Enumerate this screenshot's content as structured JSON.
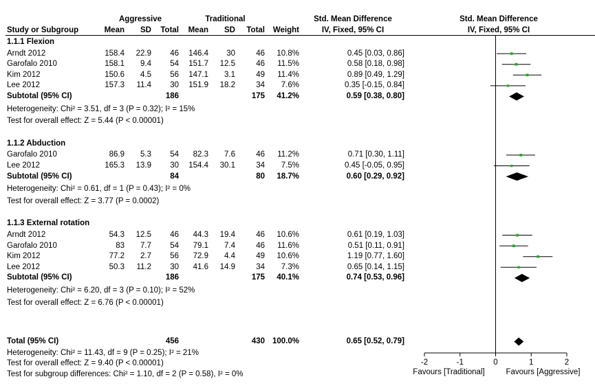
{
  "headers": {
    "aggressive": "Aggressive",
    "traditional": "Traditional",
    "smd_col": "Std. Mean Difference",
    "smd_method": "IV, Fixed, 95% CI",
    "smd_plot": "Std. Mean Difference",
    "smd_plot_method": "IV, Fixed, 95% CI",
    "study": "Study or Subgroup",
    "mean": "Mean",
    "sd": "SD",
    "total": "Total",
    "weight": "Weight"
  },
  "groups": [
    {
      "title": "1.1.1 Flexion",
      "studies": [
        {
          "name": "Arndt 2012",
          "m1": "158.4",
          "sd1": "22.9",
          "n1": "46",
          "m2": "146.4",
          "sd2": "30",
          "n2": "46",
          "weight": "10.8%",
          "ci": "0.45 [0.03, 0.86]"
        },
        {
          "name": "Garofalo 2010",
          "m1": "158.1",
          "sd1": "9.4",
          "n1": "54",
          "m2": "151.7",
          "sd2": "12.5",
          "n2": "46",
          "weight": "11.5%",
          "ci": "0.58 [0.18, 0.98]"
        },
        {
          "name": "Kim 2012",
          "m1": "150.6",
          "sd1": "4.5",
          "n1": "56",
          "m2": "147.1",
          "sd2": "3.1",
          "n2": "49",
          "weight": "11.4%",
          "ci": "0.89 [0.49, 1.29]"
        },
        {
          "name": "Lee 2012",
          "m1": "157.3",
          "sd1": "11.4",
          "n1": "30",
          "m2": "151.9",
          "sd2": "18.2",
          "n2": "34",
          "weight": "7.6%",
          "ci": "0.35 [-0.15, 0.84]"
        }
      ],
      "subtotal": {
        "label": "Subtotal (95% CI)",
        "n1": "186",
        "n2": "175",
        "weight": "41.2%",
        "ci": "0.59 [0.38, 0.80]"
      },
      "heterogeneity": "Heterogeneity: Chi² = 3.51, df = 3 (P = 0.32); I² = 15%",
      "overall": "Test for overall effect: Z = 5.44 (P < 0.00001)"
    },
    {
      "title": "1.1.2 Abduction",
      "studies": [
        {
          "name": "Garofalo 2010",
          "m1": "86.9",
          "sd1": "5.3",
          "n1": "54",
          "m2": "82.3",
          "sd2": "7.6",
          "n2": "46",
          "weight": "11.2%",
          "ci": "0.71 [0.30, 1.11]"
        },
        {
          "name": "Lee 2012",
          "m1": "165.3",
          "sd1": "13.9",
          "n1": "30",
          "m2": "154.4",
          "sd2": "30.1",
          "n2": "34",
          "weight": "7.5%",
          "ci": "0.45 [-0.05, 0.95]"
        }
      ],
      "subtotal": {
        "label": "Subtotal (95% CI)",
        "n1": "84",
        "n2": "80",
        "weight": "18.7%",
        "ci": "0.60 [0.29, 0.92]"
      },
      "heterogeneity": "Heterogeneity: Chi² = 0.61, df = 1 (P = 0.43); I² = 0%",
      "overall": "Test for overall effect: Z = 3.77 (P = 0.0002)"
    },
    {
      "title": "1.1.3 External rotation",
      "studies": [
        {
          "name": "Arndt 2012",
          "m1": "54.3",
          "sd1": "12.5",
          "n1": "46",
          "m2": "44.3",
          "sd2": "19.4",
          "n2": "46",
          "weight": "10.6%",
          "ci": "0.61 [0.19, 1.03]"
        },
        {
          "name": "Garofalo 2010",
          "m1": "83",
          "sd1": "7.7",
          "n1": "54",
          "m2": "79.1",
          "sd2": "7.4",
          "n2": "46",
          "weight": "11.6%",
          "ci": "0.51 [0.11, 0.91]"
        },
        {
          "name": "Kim 2012",
          "m1": "77.2",
          "sd1": "2.7",
          "n1": "56",
          "m2": "72.9",
          "sd2": "4.4",
          "n2": "49",
          "weight": "10.6%",
          "ci": "1.19 [0.77, 1.60]"
        },
        {
          "name": "Lee 2012",
          "m1": "50.3",
          "sd1": "11.2",
          "n1": "30",
          "m2": "41.6",
          "sd2": "14.9",
          "n2": "34",
          "weight": "7.3%",
          "ci": "0.65 [0.14, 1.15]"
        }
      ],
      "subtotal": {
        "label": "Subtotal (95% CI)",
        "n1": "186",
        "n2": "175",
        "weight": "40.1%",
        "ci": "0.74 [0.53, 0.96]"
      },
      "heterogeneity": "Heterogeneity: Chi² = 6.20, df = 3 (P = 0.10); I² = 52%",
      "overall": "Test for overall effect: Z = 6.76 (P < 0.00001)"
    }
  ],
  "total": {
    "label": "Total (95% CI)",
    "n1": "456",
    "n2": "430",
    "weight": "100.0%",
    "ci": "0.65 [0.52, 0.79]"
  },
  "footer": [
    "Heterogeneity: Chi² = 11.43, df = 9 (P = 0.25); I² = 21%",
    "Test for overall effect: Z = 9.40 (P < 0.00001)",
    "Test for subgroup differences: Chi² = 1.10, df = 2 (P = 0.58), I² = 0%"
  ],
  "axis": {
    "favours_left": "Favours [Traditional]",
    "favours_right": "Favours [Aggressive]"
  },
  "colors": {
    "study_marker": "#22aa22",
    "diamond": "#000000",
    "lines": "#000000"
  },
  "chart_data": {
    "type": "forest",
    "xlim": [
      -2,
      2
    ],
    "ticks": [
      -2,
      -1,
      0,
      1,
      2
    ],
    "tick_labels": [
      "-2",
      "-1",
      "0",
      "1",
      "2"
    ],
    "studies": [
      {
        "group": 0,
        "est": 0.45,
        "lo": 0.03,
        "hi": 0.86,
        "weight": 10.8
      },
      {
        "group": 0,
        "est": 0.58,
        "lo": 0.18,
        "hi": 0.98,
        "weight": 11.5
      },
      {
        "group": 0,
        "est": 0.89,
        "lo": 0.49,
        "hi": 1.29,
        "weight": 11.4
      },
      {
        "group": 0,
        "est": 0.35,
        "lo": -0.15,
        "hi": 0.84,
        "weight": 7.6
      },
      {
        "group": 1,
        "est": 0.71,
        "lo": 0.3,
        "hi": 1.11,
        "weight": 11.2
      },
      {
        "group": 1,
        "est": 0.45,
        "lo": -0.05,
        "hi": 0.95,
        "weight": 7.5
      },
      {
        "group": 2,
        "est": 0.61,
        "lo": 0.19,
        "hi": 1.03,
        "weight": 10.6
      },
      {
        "group": 2,
        "est": 0.51,
        "lo": 0.11,
        "hi": 0.91,
        "weight": 11.6
      },
      {
        "group": 2,
        "est": 1.19,
        "lo": 0.77,
        "hi": 1.6,
        "weight": 10.6
      },
      {
        "group": 2,
        "est": 0.65,
        "lo": 0.14,
        "hi": 1.15,
        "weight": 7.3
      }
    ],
    "diamonds": [
      {
        "kind": "subtotal",
        "group": 0,
        "est": 0.59,
        "lo": 0.38,
        "hi": 0.8
      },
      {
        "kind": "subtotal",
        "group": 1,
        "est": 0.6,
        "lo": 0.29,
        "hi": 0.92
      },
      {
        "kind": "subtotal",
        "group": 2,
        "est": 0.74,
        "lo": 0.53,
        "hi": 0.96
      },
      {
        "kind": "total",
        "est": 0.65,
        "lo": 0.52,
        "hi": 0.79
      }
    ]
  }
}
